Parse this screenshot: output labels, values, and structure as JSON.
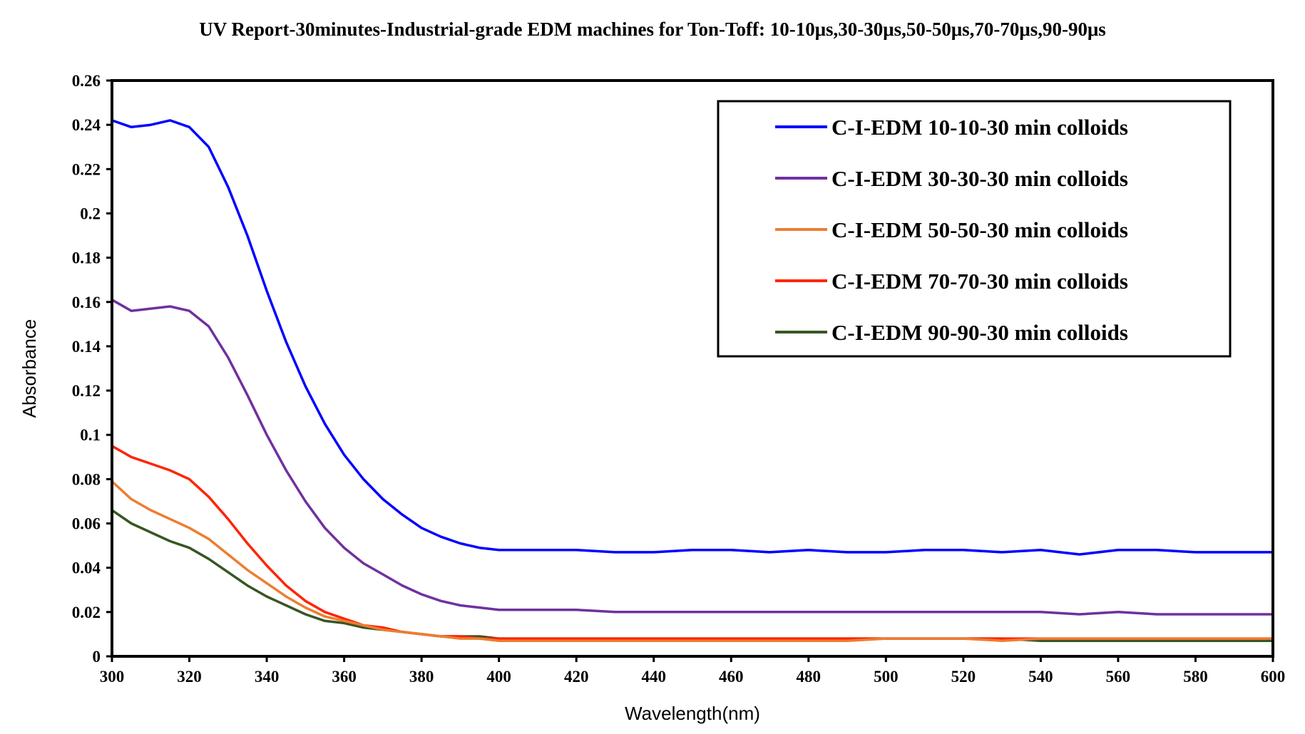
{
  "chart_data": {
    "type": "line",
    "title": "UV Report-30minutes-Industrial-grade EDM machines for Ton-Toff: 10-10μs,30-30μs,50-50μs,70-70μs,90-90μs",
    "xlabel": "Wavelength(nm)",
    "ylabel": "Absorbance",
    "xlim": [
      300,
      600
    ],
    "ylim": [
      0,
      0.26
    ],
    "xticks": [
      300,
      320,
      340,
      360,
      380,
      400,
      420,
      440,
      460,
      480,
      500,
      520,
      540,
      560,
      580,
      600
    ],
    "yticks": [
      0,
      0.02,
      0.04,
      0.06,
      0.08,
      0.1,
      0.12,
      0.14,
      0.16,
      0.18,
      0.2,
      0.22,
      0.24,
      0.26
    ],
    "ytick_labels": [
      "0",
      "0.02",
      "0.04",
      "0.06",
      "0.08",
      "0.1",
      "0.12",
      "0.14",
      "0.16",
      "0.18",
      "0.2",
      "0.22",
      "0.24",
      "0.26"
    ],
    "legend_position": "top-right",
    "x": [
      300,
      305,
      310,
      315,
      320,
      325,
      330,
      335,
      340,
      345,
      350,
      355,
      360,
      365,
      370,
      375,
      380,
      385,
      390,
      395,
      400,
      410,
      420,
      430,
      440,
      450,
      460,
      470,
      480,
      490,
      500,
      510,
      520,
      530,
      540,
      550,
      560,
      570,
      580,
      590,
      600
    ],
    "series": [
      {
        "name": "C-I-EDM 10-10-30 min colloids",
        "color": "#0000ff",
        "values": [
          0.242,
          0.239,
          0.24,
          0.242,
          0.239,
          0.23,
          0.212,
          0.19,
          0.165,
          0.142,
          0.122,
          0.105,
          0.091,
          0.08,
          0.071,
          0.064,
          0.058,
          0.054,
          0.051,
          0.049,
          0.048,
          0.048,
          0.048,
          0.047,
          0.047,
          0.048,
          0.048,
          0.047,
          0.048,
          0.047,
          0.047,
          0.048,
          0.048,
          0.047,
          0.048,
          0.046,
          0.048,
          0.048,
          0.047,
          0.047,
          0.047
        ]
      },
      {
        "name": "C-I-EDM 30-30-30 min colloids",
        "color": "#7030a0",
        "values": [
          0.161,
          0.156,
          0.157,
          0.158,
          0.156,
          0.149,
          0.135,
          0.118,
          0.1,
          0.084,
          0.07,
          0.058,
          0.049,
          0.042,
          0.037,
          0.032,
          0.028,
          0.025,
          0.023,
          0.022,
          0.021,
          0.021,
          0.021,
          0.02,
          0.02,
          0.02,
          0.02,
          0.02,
          0.02,
          0.02,
          0.02,
          0.02,
          0.02,
          0.02,
          0.02,
          0.019,
          0.02,
          0.019,
          0.019,
          0.019,
          0.019
        ]
      },
      {
        "name": "C-I-EDM 50-50-30 min colloids",
        "color": "#ed7d31",
        "values": [
          0.079,
          0.071,
          0.066,
          0.062,
          0.058,
          0.053,
          0.046,
          0.039,
          0.033,
          0.027,
          0.022,
          0.018,
          0.016,
          0.014,
          0.012,
          0.011,
          0.01,
          0.009,
          0.008,
          0.008,
          0.007,
          0.007,
          0.007,
          0.007,
          0.007,
          0.007,
          0.007,
          0.007,
          0.007,
          0.007,
          0.008,
          0.008,
          0.008,
          0.007,
          0.008,
          0.008,
          0.008,
          0.008,
          0.008,
          0.008,
          0.008
        ]
      },
      {
        "name": "C-I-EDM 70-70-30 min colloids",
        "color": "#ff2400",
        "values": [
          0.095,
          0.09,
          0.087,
          0.084,
          0.08,
          0.072,
          0.062,
          0.051,
          0.041,
          0.032,
          0.025,
          0.02,
          0.017,
          0.014,
          0.013,
          0.011,
          0.01,
          0.009,
          0.009,
          0.008,
          0.008,
          0.008,
          0.008,
          0.008,
          0.008,
          0.008,
          0.008,
          0.008,
          0.008,
          0.008,
          0.008,
          0.008,
          0.008,
          0.008,
          0.008,
          0.008,
          0.008,
          0.008,
          0.008,
          0.008,
          0.008
        ]
      },
      {
        "name": "C-I-EDM 90-90-30 min colloids",
        "color": "#375623",
        "values": [
          0.066,
          0.06,
          0.056,
          0.052,
          0.049,
          0.044,
          0.038,
          0.032,
          0.027,
          0.023,
          0.019,
          0.016,
          0.015,
          0.013,
          0.012,
          0.011,
          0.01,
          0.009,
          0.009,
          0.009,
          0.008,
          0.008,
          0.008,
          0.008,
          0.008,
          0.008,
          0.008,
          0.008,
          0.008,
          0.008,
          0.008,
          0.008,
          0.008,
          0.008,
          0.007,
          0.007,
          0.007,
          0.007,
          0.007,
          0.007,
          0.007
        ]
      }
    ]
  }
}
